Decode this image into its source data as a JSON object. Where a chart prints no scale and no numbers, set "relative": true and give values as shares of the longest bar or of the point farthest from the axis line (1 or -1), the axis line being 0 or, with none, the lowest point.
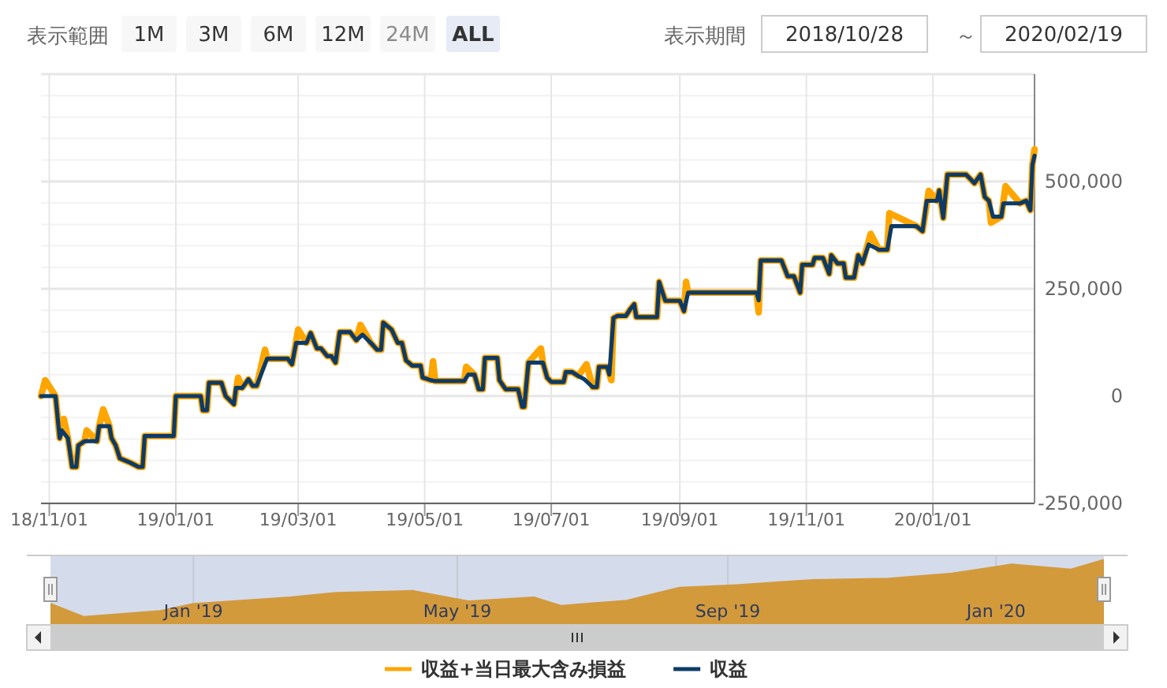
{
  "chart_data": [
    {
      "type": "line",
      "annotations": [
        "表示範囲",
        "1M",
        "3M",
        "6M",
        "12M",
        "24M",
        "ALL",
        "表示期間",
        "2018/10/28",
        "～",
        "2020/02/19"
      ],
      "xlim": [
        "2018-10-28",
        "2020-02-19"
      ],
      "xticks": [
        {
          "value": "2018-11-01",
          "label": "18/11/01"
        },
        {
          "value": "2019-01-01",
          "label": "19/01/01"
        },
        {
          "value": "2019-03-01",
          "label": "19/03/01"
        },
        {
          "value": "2019-05-01",
          "label": "19/05/01"
        },
        {
          "value": "2019-07-01",
          "label": "19/07/01"
        },
        {
          "value": "2019-09-01",
          "label": "19/09/01"
        },
        {
          "value": "2019-11-01",
          "label": "19/11/01"
        },
        {
          "value": "2020-01-01",
          "label": "20/01/01"
        }
      ],
      "ylim": [
        -250000,
        750000
      ],
      "yticks": [
        {
          "value": -250000,
          "label": "-250,000"
        },
        0,
        {
          "value": 250000,
          "label": "250,000"
        },
        {
          "value": 500000,
          "label": "500,000"
        }
      ],
      "grid": true,
      "legend": "bottom",
      "series": [
        {
          "name": "収益+当日最大含み損益",
          "color": "#ffa500",
          "x": [
            "2018-10-28",
            "2018-10-30",
            "2018-11-04",
            "2018-11-06",
            "2018-11-08",
            "2018-11-10",
            "2018-11-12",
            "2018-11-14",
            "2018-11-15",
            "2018-11-18",
            "2018-11-19",
            "2018-11-24",
            "2018-11-25",
            "2018-11-27",
            "2018-11-30",
            "2018-12-01",
            "2018-12-03",
            "2018-12-05",
            "2018-12-10",
            "2018-12-14",
            "2018-12-16",
            "2018-12-17",
            "2018-12-31",
            "2019-01-01",
            "2019-01-13",
            "2019-01-14",
            "2019-01-16",
            "2019-01-17",
            "2019-01-23",
            "2019-01-25",
            "2019-01-29",
            "2019-01-31",
            "2019-02-02",
            "2019-02-05",
            "2019-02-07",
            "2019-02-09",
            "2019-02-13",
            "2019-02-14",
            "2019-02-24",
            "2019-02-26",
            "2019-03-01",
            "2019-03-05",
            "2019-03-07",
            "2019-03-10",
            "2019-03-12",
            "2019-03-15",
            "2019-03-17",
            "2019-03-19",
            "2019-03-21",
            "2019-03-26",
            "2019-03-29",
            "2019-03-31",
            "2019-04-05",
            "2019-04-08",
            "2019-04-10",
            "2019-04-11",
            "2019-04-15",
            "2019-04-18",
            "2019-04-20",
            "2019-04-22",
            "2019-04-25",
            "2019-04-29",
            "2019-04-30",
            "2019-05-04",
            "2019-05-05",
            "2019-05-06",
            "2019-05-20",
            "2019-05-21",
            "2019-05-25",
            "2019-05-27",
            "2019-05-29",
            "2019-05-30",
            "2019-06-05",
            "2019-06-06",
            "2019-06-09",
            "2019-06-15",
            "2019-06-17",
            "2019-06-18",
            "2019-06-20",
            "2019-06-26",
            "2019-06-27",
            "2019-06-29",
            "2019-07-01",
            "2019-07-07",
            "2019-07-08",
            "2019-07-11",
            "2019-07-14",
            "2019-07-18",
            "2019-07-21",
            "2019-07-23",
            "2019-07-24",
            "2019-07-28",
            "2019-07-30",
            "2019-07-31",
            "2019-08-02",
            "2019-08-06",
            "2019-08-08",
            "2019-08-10",
            "2019-08-11",
            "2019-08-21",
            "2019-08-22",
            "2019-08-25",
            "2019-09-01",
            "2019-09-03",
            "2019-09-04",
            "2019-09-05",
            "2019-10-08",
            "2019-10-09",
            "2019-10-10",
            "2019-10-20",
            "2019-10-23",
            "2019-10-26",
            "2019-10-29",
            "2019-10-30",
            "2019-11-04",
            "2019-11-05",
            "2019-11-09",
            "2019-11-12",
            "2019-11-13",
            "2019-11-16",
            "2019-11-19",
            "2019-11-20",
            "2019-11-24",
            "2019-11-26",
            "2019-11-28",
            "2019-12-02",
            "2019-12-06",
            "2019-12-10",
            "2019-12-11",
            "2019-12-24",
            "2019-12-27",
            "2019-12-30",
            "2020-01-03",
            "2020-01-04",
            "2020-01-06",
            "2020-01-08",
            "2020-01-17",
            "2020-01-21",
            "2020-01-24",
            "2020-01-26",
            "2020-01-28",
            "2020-01-29",
            "2020-02-03",
            "2020-02-05",
            "2020-02-12",
            "2020-02-15",
            "2020-02-17",
            "2020-02-18",
            "2020-02-19"
          ],
          "values": [
            0,
            37000,
            0,
            -98000,
            -53000,
            -98000,
            -165000,
            -165000,
            -115000,
            -105000,
            -80000,
            -105000,
            -70000,
            -31000,
            -70000,
            -98000,
            -115000,
            -145000,
            -155000,
            -165000,
            -165000,
            -93000,
            -93000,
            0,
            0,
            -33000,
            -33000,
            31000,
            31000,
            0,
            -19000,
            43000,
            19000,
            39000,
            24000,
            24000,
            108000,
            87000,
            87000,
            74000,
            155000,
            124000,
            147000,
            111000,
            111000,
            93000,
            93000,
            78000,
            149000,
            149000,
            130000,
            166000,
            124000,
            108000,
            108000,
            171000,
            155000,
            124000,
            124000,
            83000,
            71000,
            71000,
            43000,
            37000,
            81000,
            35000,
            35000,
            68000,
            50000,
            16000,
            16000,
            89000,
            89000,
            37000,
            16000,
            16000,
            -25000,
            -25000,
            78000,
            111000,
            78000,
            43000,
            33000,
            33000,
            56000,
            56000,
            47000,
            74000,
            21000,
            21000,
            68000,
            68000,
            37000,
            182000,
            187000,
            187000,
            202000,
            214000,
            184000,
            184000,
            266000,
            222000,
            222000,
            198000,
            266000,
            241000,
            241000,
            195000,
            316000,
            316000,
            279000,
            279000,
            241000,
            306000,
            306000,
            322000,
            322000,
            285000,
            328000,
            309000,
            309000,
            276000,
            276000,
            328000,
            309000,
            378000,
            341000,
            341000,
            426000,
            396000,
            384000,
            478000,
            455000,
            479000,
            415000,
            516000,
            516000,
            496000,
            516000,
            464000,
            455000,
            404000,
            418000,
            489000,
            449000,
            455000,
            433000,
            539000,
            575000
          ]
        },
        {
          "name": "収益",
          "color": "#0d3b66",
          "x": [
            "2018-10-28",
            "2018-11-04",
            "2018-11-06",
            "2018-11-07",
            "2018-11-10",
            "2018-11-12",
            "2018-11-14",
            "2018-11-15",
            "2018-11-18",
            "2018-11-24",
            "2018-11-25",
            "2018-11-30",
            "2018-12-01",
            "2018-12-03",
            "2018-12-05",
            "2018-12-10",
            "2018-12-14",
            "2018-12-16",
            "2018-12-17",
            "2018-12-31",
            "2019-01-01",
            "2019-01-13",
            "2019-01-14",
            "2019-01-16",
            "2019-01-17",
            "2019-01-23",
            "2019-01-25",
            "2019-01-29",
            "2019-01-30",
            "2019-02-02",
            "2019-02-05",
            "2019-02-07",
            "2019-02-09",
            "2019-02-12",
            "2019-02-14",
            "2019-02-24",
            "2019-02-26",
            "2019-02-28",
            "2019-03-05",
            "2019-03-07",
            "2019-03-10",
            "2019-03-12",
            "2019-03-15",
            "2019-03-17",
            "2019-03-19",
            "2019-03-21",
            "2019-03-26",
            "2019-03-29",
            "2019-04-01",
            "2019-04-05",
            "2019-04-08",
            "2019-04-10",
            "2019-04-11",
            "2019-04-15",
            "2019-04-18",
            "2019-04-20",
            "2019-04-22",
            "2019-04-25",
            "2019-04-29",
            "2019-04-30",
            "2019-05-04",
            "2019-05-06",
            "2019-05-20",
            "2019-05-22",
            "2019-05-25",
            "2019-05-27",
            "2019-05-29",
            "2019-05-30",
            "2019-06-05",
            "2019-06-06",
            "2019-06-09",
            "2019-06-15",
            "2019-06-17",
            "2019-06-18",
            "2019-06-20",
            "2019-06-27",
            "2019-06-29",
            "2019-07-01",
            "2019-07-07",
            "2019-07-08",
            "2019-07-11",
            "2019-07-14",
            "2019-07-17",
            "2019-07-21",
            "2019-07-23",
            "2019-07-24",
            "2019-07-28",
            "2019-07-29",
            "2019-07-31",
            "2019-08-02",
            "2019-08-06",
            "2019-08-08",
            "2019-08-10",
            "2019-08-11",
            "2019-08-21",
            "2019-08-22",
            "2019-08-25",
            "2019-09-01",
            "2019-09-03",
            "2019-09-05",
            "2019-10-08",
            "2019-10-09",
            "2019-10-10",
            "2019-10-20",
            "2019-10-23",
            "2019-10-26",
            "2019-10-29",
            "2019-10-30",
            "2019-11-04",
            "2019-11-05",
            "2019-11-09",
            "2019-11-12",
            "2019-11-13",
            "2019-11-16",
            "2019-11-19",
            "2019-11-20",
            "2019-11-24",
            "2019-11-26",
            "2019-11-28",
            "2019-12-01",
            "2019-12-06",
            "2019-12-10",
            "2019-12-12",
            "2019-12-24",
            "2019-12-27",
            "2019-12-29",
            "2020-01-03",
            "2020-01-04",
            "2020-01-06",
            "2020-01-08",
            "2020-01-17",
            "2020-01-21",
            "2020-01-24",
            "2020-01-26",
            "2020-01-28",
            "2020-01-30",
            "2020-02-03",
            "2020-02-04",
            "2020-02-12",
            "2020-02-15",
            "2020-02-17",
            "2020-02-18",
            "2020-02-19"
          ],
          "values": [
            0,
            0,
            -98000,
            -80000,
            -98000,
            -165000,
            -165000,
            -115000,
            -105000,
            -105000,
            -70000,
            -70000,
            -98000,
            -115000,
            -145000,
            -155000,
            -165000,
            -165000,
            -93000,
            -93000,
            0,
            0,
            -33000,
            -33000,
            31000,
            31000,
            0,
            -19000,
            19000,
            19000,
            39000,
            24000,
            24000,
            62000,
            87000,
            87000,
            74000,
            124000,
            124000,
            147000,
            111000,
            111000,
            93000,
            93000,
            78000,
            149000,
            149000,
            130000,
            143000,
            124000,
            108000,
            108000,
            171000,
            155000,
            124000,
            124000,
            83000,
            71000,
            71000,
            43000,
            37000,
            35000,
            35000,
            50000,
            50000,
            16000,
            16000,
            89000,
            89000,
            37000,
            16000,
            16000,
            -25000,
            -25000,
            78000,
            78000,
            43000,
            33000,
            33000,
            56000,
            56000,
            47000,
            39000,
            21000,
            21000,
            68000,
            68000,
            50000,
            182000,
            187000,
            187000,
            202000,
            214000,
            184000,
            184000,
            266000,
            222000,
            222000,
            198000,
            241000,
            241000,
            223000,
            316000,
            316000,
            279000,
            279000,
            241000,
            306000,
            306000,
            322000,
            322000,
            285000,
            328000,
            309000,
            309000,
            276000,
            276000,
            328000,
            309000,
            353000,
            341000,
            341000,
            396000,
            396000,
            384000,
            455000,
            455000,
            479000,
            415000,
            516000,
            516000,
            496000,
            516000,
            464000,
            455000,
            418000,
            418000,
            449000,
            449000,
            455000,
            433000,
            539000,
            560000
          ]
        }
      ]
    },
    {
      "type": "area",
      "relative": true,
      "color": "#d39a3c",
      "grid": "x",
      "xlim": [
        "2018-10-28",
        "2020-02-19"
      ],
      "xticks": [
        {
          "value": "2019-01-01",
          "label": "Jan '19"
        },
        {
          "value": "2019-05-01",
          "label": "May '19"
        },
        {
          "value": "2019-09-01",
          "label": "Sep '19"
        },
        {
          "value": "2020-01-01",
          "label": "Jan '20"
        }
      ],
      "x": [
        "2018-10-28",
        "2018-11-12",
        "2018-12-17",
        "2019-01-01",
        "2019-02-14",
        "2019-03-07",
        "2019-04-11",
        "2019-05-06",
        "2019-06-05",
        "2019-06-17",
        "2019-07-17",
        "2019-08-10",
        "2019-09-05",
        "2019-10-10",
        "2019-11-13",
        "2019-12-12",
        "2020-01-08",
        "2020-02-04",
        "2020-02-19"
      ],
      "values": [
        0.32,
        0.12,
        0.21,
        0.32,
        0.42,
        0.49,
        0.52,
        0.36,
        0.42,
        0.29,
        0.37,
        0.57,
        0.61,
        0.69,
        0.71,
        0.79,
        0.93,
        0.85,
        1.0
      ]
    }
  ]
}
